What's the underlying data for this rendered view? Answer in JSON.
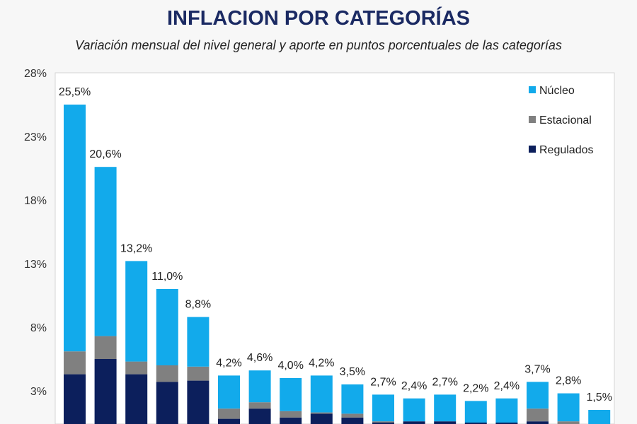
{
  "chart_data": {
    "type": "bar",
    "stacked": true,
    "title": "INFLACION POR CATEGORÍAS",
    "subtitle": "Variación mensual del nivel general y aporte en puntos porcentuales de las categorías",
    "xlabel": "",
    "ylabel": "",
    "ylim": [
      -2,
      28
    ],
    "yticks": [
      3,
      8,
      13,
      18,
      23,
      28
    ],
    "ytick_labels": [
      "3%",
      "8%",
      "13%",
      "18%",
      "23%",
      "28%"
    ],
    "grid": false,
    "legend_position": "top-right",
    "totals": [
      25.5,
      20.6,
      13.2,
      11.0,
      8.8,
      4.2,
      4.6,
      4.0,
      4.2,
      3.5,
      2.7,
      2.4,
      2.7,
      2.2,
      2.4,
      3.7,
      2.8,
      1.5
    ],
    "total_labels": [
      "25,5%",
      "20,6%",
      "13,2%",
      "11,0%",
      "8,8%",
      "4,2%",
      "4,6%",
      "4,0%",
      "4,2%",
      "3,5%",
      "2,7%",
      "2,4%",
      "2,7%",
      "2,2%",
      "2,4%",
      "3,7%",
      "2,8%",
      "1,5%"
    ],
    "series": [
      {
        "name": "Regulados",
        "color": "#0c1f5c",
        "values": [
          4.3,
          5.5,
          4.3,
          3.7,
          3.8,
          0.8,
          1.6,
          0.9,
          1.2,
          0.9,
          0.5,
          0.6,
          0.6,
          0.5,
          0.5,
          0.6,
          0.2,
          0.0
        ]
      },
      {
        "name": "Estacional",
        "color": "#808080",
        "values": [
          1.8,
          1.8,
          1.0,
          1.3,
          1.1,
          0.8,
          0.5,
          0.5,
          0.1,
          0.3,
          0.1,
          0.0,
          0.0,
          0.0,
          0.0,
          1.0,
          0.4,
          0.0
        ]
      },
      {
        "name": "Núcleo",
        "color": "#12aaeb",
        "values": [
          19.4,
          13.3,
          7.9,
          6.0,
          3.9,
          2.6,
          2.5,
          2.6,
          2.9,
          2.3,
          2.1,
          1.8,
          2.1,
          1.7,
          1.9,
          2.1,
          2.2,
          1.5
        ]
      }
    ],
    "legend_order": [
      "Núcleo",
      "Estacional",
      "Regulados"
    ]
  }
}
